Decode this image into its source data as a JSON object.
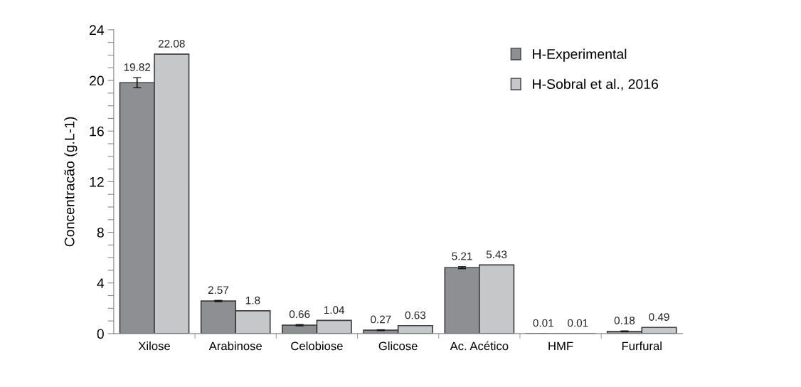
{
  "chart_data": {
    "type": "bar",
    "ylabel": "Concentracão (g.L-1)",
    "categories": [
      "Xilose",
      "Arabinose",
      "Celobiose",
      "Glicose",
      "Ac. Acético",
      "HMF",
      "Furfural"
    ],
    "series": [
      {
        "name": "H-Experimental",
        "color": "#8e8f93",
        "values": [
          19.82,
          2.57,
          0.66,
          0.27,
          5.21,
          0.01,
          0.18
        ],
        "errors": [
          0.4,
          0.05,
          0.05,
          0.03,
          0.08,
          null,
          0.03
        ]
      },
      {
        "name": "H-Sobral et al., 2016",
        "color": "#c6c7c9",
        "values": [
          22.08,
          1.8,
          1.04,
          0.63,
          5.43,
          0.01,
          0.49
        ]
      }
    ],
    "ylim": [
      0,
      24
    ],
    "yticks": [
      0,
      {
        "value": 1,
        "label": null
      },
      {
        "value": 2,
        "label": null
      },
      {
        "value": 3,
        "label": null
      },
      4,
      {
        "value": 5,
        "label": null
      },
      {
        "value": 6,
        "label": null
      },
      {
        "value": 7,
        "label": null
      },
      8,
      {
        "value": 9,
        "label": null
      },
      {
        "value": 10,
        "label": null
      },
      {
        "value": 11,
        "label": null
      },
      12,
      {
        "value": 13,
        "label": null
      },
      {
        "value": 14,
        "label": null
      },
      {
        "value": 15,
        "label": null
      },
      16,
      {
        "value": 17,
        "label": null
      },
      {
        "value": 18,
        "label": null
      },
      {
        "value": 19,
        "label": null
      },
      20,
      {
        "value": 21,
        "label": null
      },
      {
        "value": 22,
        "label": null
      },
      {
        "value": 23,
        "label": null
      },
      24
    ],
    "data_labels": true,
    "legend": "top right",
    "grid": false
  }
}
